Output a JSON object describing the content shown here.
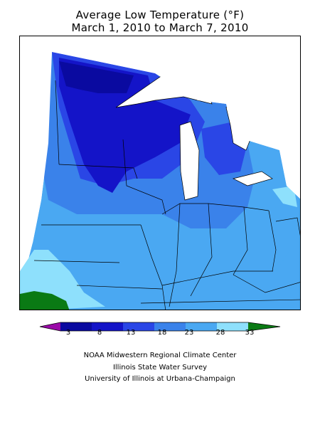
{
  "title_line1": "Average Low Temperature (°F)",
  "title_line2": "March 1, 2010 to March 7, 2010",
  "legend": {
    "ticks": [
      "3",
      "8",
      "13",
      "18",
      "23",
      "28",
      "33"
    ],
    "colors": [
      "#9a0aa8",
      "#0a0aa0",
      "#1414c8",
      "#2a46e6",
      "#3a82ea",
      "#4aa8f2",
      "#8ee0fc",
      "#0a7a14"
    ]
  },
  "credits": [
    "NOAA Midwestern Regional Climate Center",
    "Illinois State Water Survey",
    "University of Illinois at Urbana-Champaign"
  ]
}
